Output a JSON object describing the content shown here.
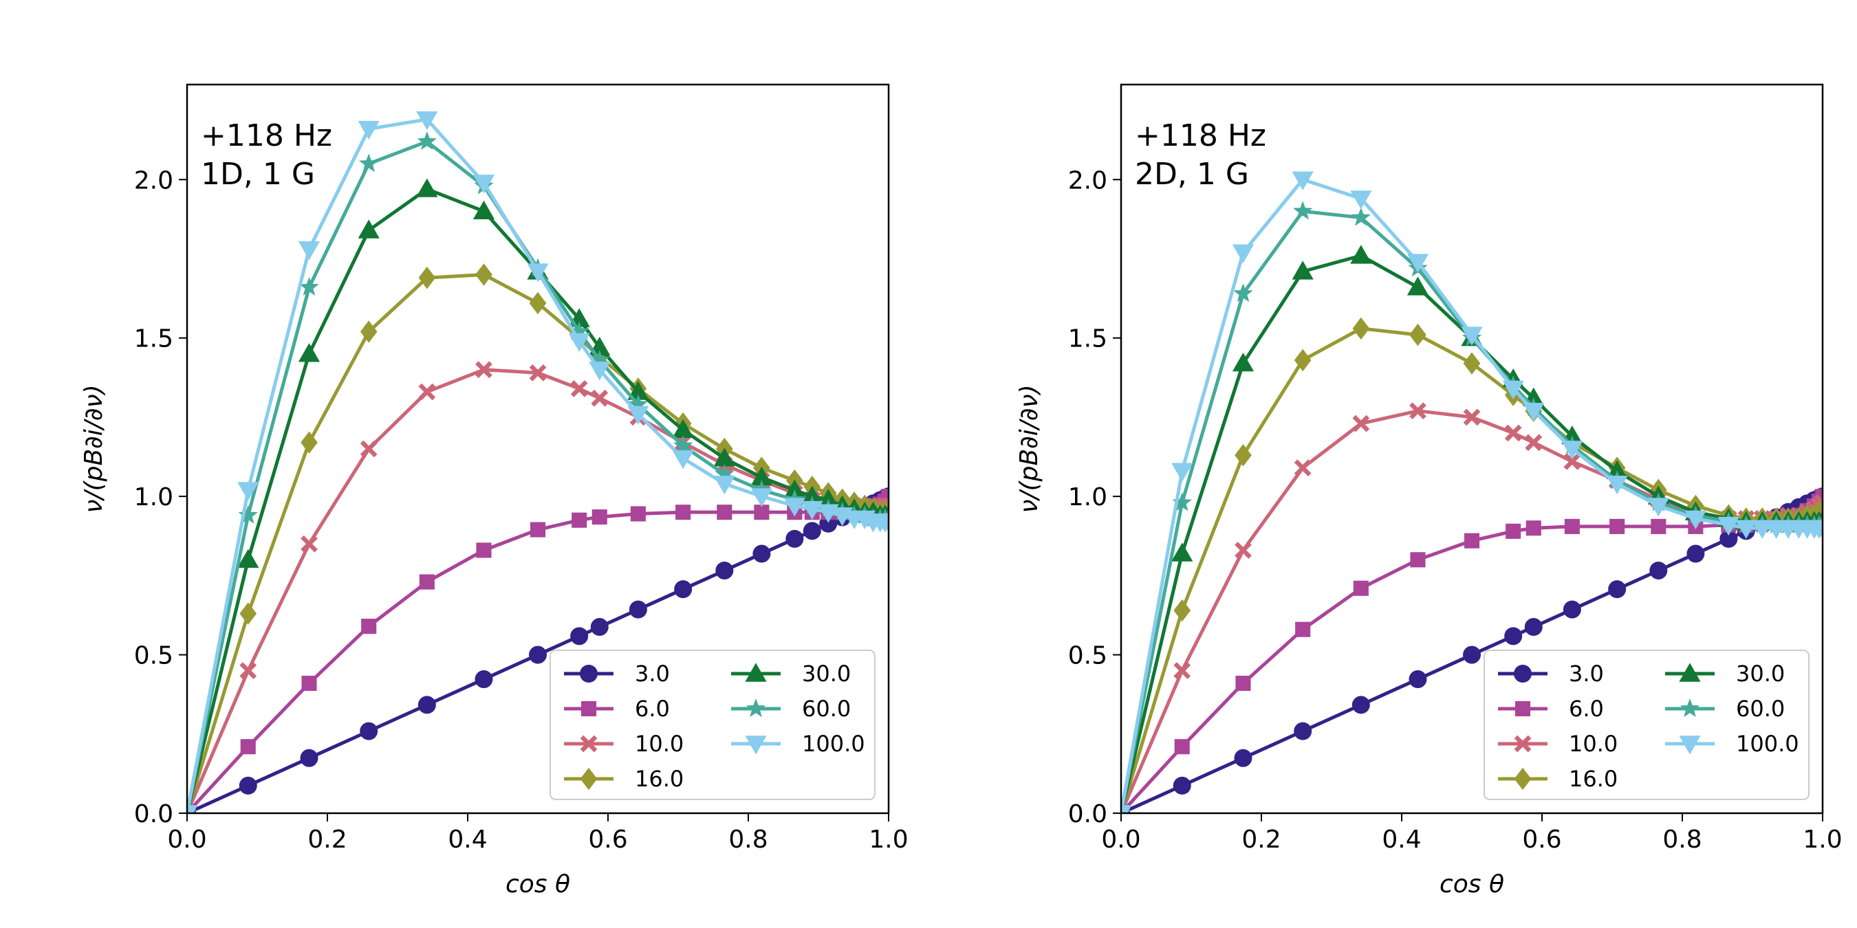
{
  "chart_data": [
    {
      "type": "line",
      "annotation": [
        "+118 Hz",
        "1D, 1 G"
      ],
      "xlabel": "cos θ",
      "ylabel": "ν/(pB∂i/∂ν)",
      "xlim": [
        0.0,
        1.0
      ],
      "ylim": [
        0.0,
        2.3
      ],
      "xticks": [
        "0.0",
        "0.2",
        "0.4",
        "0.6",
        "0.8",
        "1.0"
      ],
      "yticks": [
        "0.0",
        "0.5",
        "1.0",
        "1.5",
        "2.0"
      ],
      "legend_position": "lower-right",
      "x": [
        0.0,
        0.087,
        0.174,
        0.259,
        0.342,
        0.423,
        0.5,
        0.559,
        0.588,
        0.643,
        0.707,
        0.766,
        0.819,
        0.866,
        0.891,
        0.914,
        0.934,
        0.951,
        0.966,
        0.978,
        0.988,
        0.995,
        1.0
      ],
      "series": [
        {
          "name": "3.0",
          "color": "#332288",
          "marker": "circle",
          "values": [
            0.0,
            0.087,
            0.174,
            0.259,
            0.342,
            0.423,
            0.5,
            0.559,
            0.588,
            0.643,
            0.707,
            0.766,
            0.819,
            0.866,
            0.891,
            0.914,
            0.934,
            0.951,
            0.966,
            0.978,
            0.988,
            0.995,
            1.0
          ]
        },
        {
          "name": "6.0",
          "color": "#AA4499",
          "marker": "square",
          "values": [
            0.0,
            0.21,
            0.41,
            0.59,
            0.73,
            0.83,
            0.895,
            0.925,
            0.935,
            0.945,
            0.95,
            0.95,
            0.95,
            0.95,
            0.95,
            0.95,
            0.95,
            0.955,
            0.96,
            0.965,
            0.975,
            0.985,
            1.0
          ]
        },
        {
          "name": "10.0",
          "color": "#CC6677",
          "marker": "x",
          "values": [
            0.0,
            0.45,
            0.85,
            1.15,
            1.33,
            1.4,
            1.39,
            1.34,
            1.31,
            1.25,
            1.17,
            1.1,
            1.05,
            1.01,
            0.99,
            0.98,
            0.97,
            0.97,
            0.97,
            0.97,
            0.97,
            0.97,
            0.97
          ]
        },
        {
          "name": "16.0",
          "color": "#999933",
          "marker": "diamond",
          "values": [
            0.0,
            0.63,
            1.17,
            1.52,
            1.69,
            1.7,
            1.61,
            1.5,
            1.44,
            1.34,
            1.23,
            1.15,
            1.09,
            1.05,
            1.03,
            1.01,
            0.99,
            0.98,
            0.97,
            0.96,
            0.95,
            0.95,
            0.95
          ]
        },
        {
          "name": "30.0",
          "color": "#117733",
          "marker": "triangle-up",
          "values": [
            0.0,
            0.8,
            1.45,
            1.84,
            1.97,
            1.9,
            1.71,
            1.56,
            1.47,
            1.33,
            1.21,
            1.12,
            1.06,
            1.02,
            1.0,
            0.99,
            0.97,
            0.96,
            0.95,
            0.95,
            0.94,
            0.94,
            0.94
          ]
        },
        {
          "name": "60.0",
          "color": "#44AA99",
          "marker": "star",
          "values": [
            0.0,
            0.94,
            1.66,
            2.05,
            2.12,
            1.98,
            1.72,
            1.52,
            1.43,
            1.29,
            1.16,
            1.07,
            1.02,
            0.99,
            0.97,
            0.96,
            0.95,
            0.94,
            0.94,
            0.93,
            0.93,
            0.93,
            0.93
          ]
        },
        {
          "name": "100.0",
          "color": "#88CCEE",
          "marker": "triangle-down",
          "values": [
            0.0,
            1.02,
            1.78,
            2.16,
            2.19,
            1.99,
            1.71,
            1.49,
            1.4,
            1.26,
            1.12,
            1.04,
            1.0,
            0.97,
            0.96,
            0.95,
            0.94,
            0.93,
            0.93,
            0.92,
            0.92,
            0.92,
            0.92
          ]
        }
      ]
    },
    {
      "type": "line",
      "annotation": [
        "+118 Hz",
        "2D, 1 G"
      ],
      "xlabel": "cos θ",
      "ylabel": "ν/(pB∂i/∂ν)",
      "xlim": [
        0.0,
        1.0
      ],
      "ylim": [
        0.0,
        2.3
      ],
      "xticks": [
        "0.0",
        "0.2",
        "0.4",
        "0.6",
        "0.8",
        "1.0"
      ],
      "yticks": [
        "0.0",
        "0.5",
        "1.0",
        "1.5",
        "2.0"
      ],
      "legend_position": "lower-right",
      "x": [
        0.0,
        0.087,
        0.174,
        0.259,
        0.342,
        0.423,
        0.5,
        0.559,
        0.588,
        0.643,
        0.707,
        0.766,
        0.819,
        0.866,
        0.891,
        0.914,
        0.934,
        0.951,
        0.966,
        0.978,
        0.988,
        0.995,
        1.0
      ],
      "series": [
        {
          "name": "3.0",
          "color": "#332288",
          "marker": "circle",
          "values": [
            0.0,
            0.087,
            0.174,
            0.259,
            0.342,
            0.423,
            0.5,
            0.559,
            0.588,
            0.643,
            0.707,
            0.766,
            0.819,
            0.866,
            0.891,
            0.914,
            0.934,
            0.951,
            0.966,
            0.978,
            0.988,
            0.995,
            1.0
          ]
        },
        {
          "name": "6.0",
          "color": "#AA4499",
          "marker": "square",
          "values": [
            0.0,
            0.21,
            0.41,
            0.58,
            0.71,
            0.8,
            0.86,
            0.89,
            0.9,
            0.905,
            0.905,
            0.905,
            0.905,
            0.91,
            0.91,
            0.915,
            0.92,
            0.93,
            0.94,
            0.955,
            0.97,
            0.985,
            1.0
          ]
        },
        {
          "name": "10.0",
          "color": "#CC6677",
          "marker": "x",
          "values": [
            0.0,
            0.45,
            0.83,
            1.09,
            1.23,
            1.27,
            1.25,
            1.2,
            1.17,
            1.11,
            1.05,
            0.99,
            0.95,
            0.93,
            0.93,
            0.93,
            0.93,
            0.94,
            0.94,
            0.95,
            0.96,
            0.97,
            0.98
          ]
        },
        {
          "name": "16.0",
          "color": "#999933",
          "marker": "diamond",
          "values": [
            0.0,
            0.64,
            1.13,
            1.43,
            1.53,
            1.51,
            1.42,
            1.32,
            1.27,
            1.17,
            1.09,
            1.02,
            0.97,
            0.94,
            0.93,
            0.93,
            0.93,
            0.93,
            0.93,
            0.94,
            0.94,
            0.95,
            0.95
          ]
        },
        {
          "name": "30.0",
          "color": "#117733",
          "marker": "triangle-up",
          "values": [
            0.0,
            0.82,
            1.42,
            1.71,
            1.76,
            1.66,
            1.5,
            1.37,
            1.31,
            1.19,
            1.08,
            1.0,
            0.95,
            0.93,
            0.92,
            0.92,
            0.92,
            0.92,
            0.92,
            0.92,
            0.92,
            0.92,
            0.92
          ]
        },
        {
          "name": "60.0",
          "color": "#44AA99",
          "marker": "star",
          "values": [
            0.0,
            0.98,
            1.64,
            1.9,
            1.88,
            1.72,
            1.5,
            1.35,
            1.28,
            1.16,
            1.05,
            0.98,
            0.94,
            0.92,
            0.91,
            0.91,
            0.91,
            0.91,
            0.91,
            0.91,
            0.91,
            0.91,
            0.91
          ]
        },
        {
          "name": "100.0",
          "color": "#88CCEE",
          "marker": "triangle-down",
          "values": [
            0.0,
            1.08,
            1.77,
            2.0,
            1.94,
            1.74,
            1.51,
            1.34,
            1.27,
            1.15,
            1.04,
            0.97,
            0.93,
            0.91,
            0.9,
            0.9,
            0.9,
            0.9,
            0.9,
            0.9,
            0.9,
            0.9,
            0.9
          ]
        }
      ]
    }
  ]
}
